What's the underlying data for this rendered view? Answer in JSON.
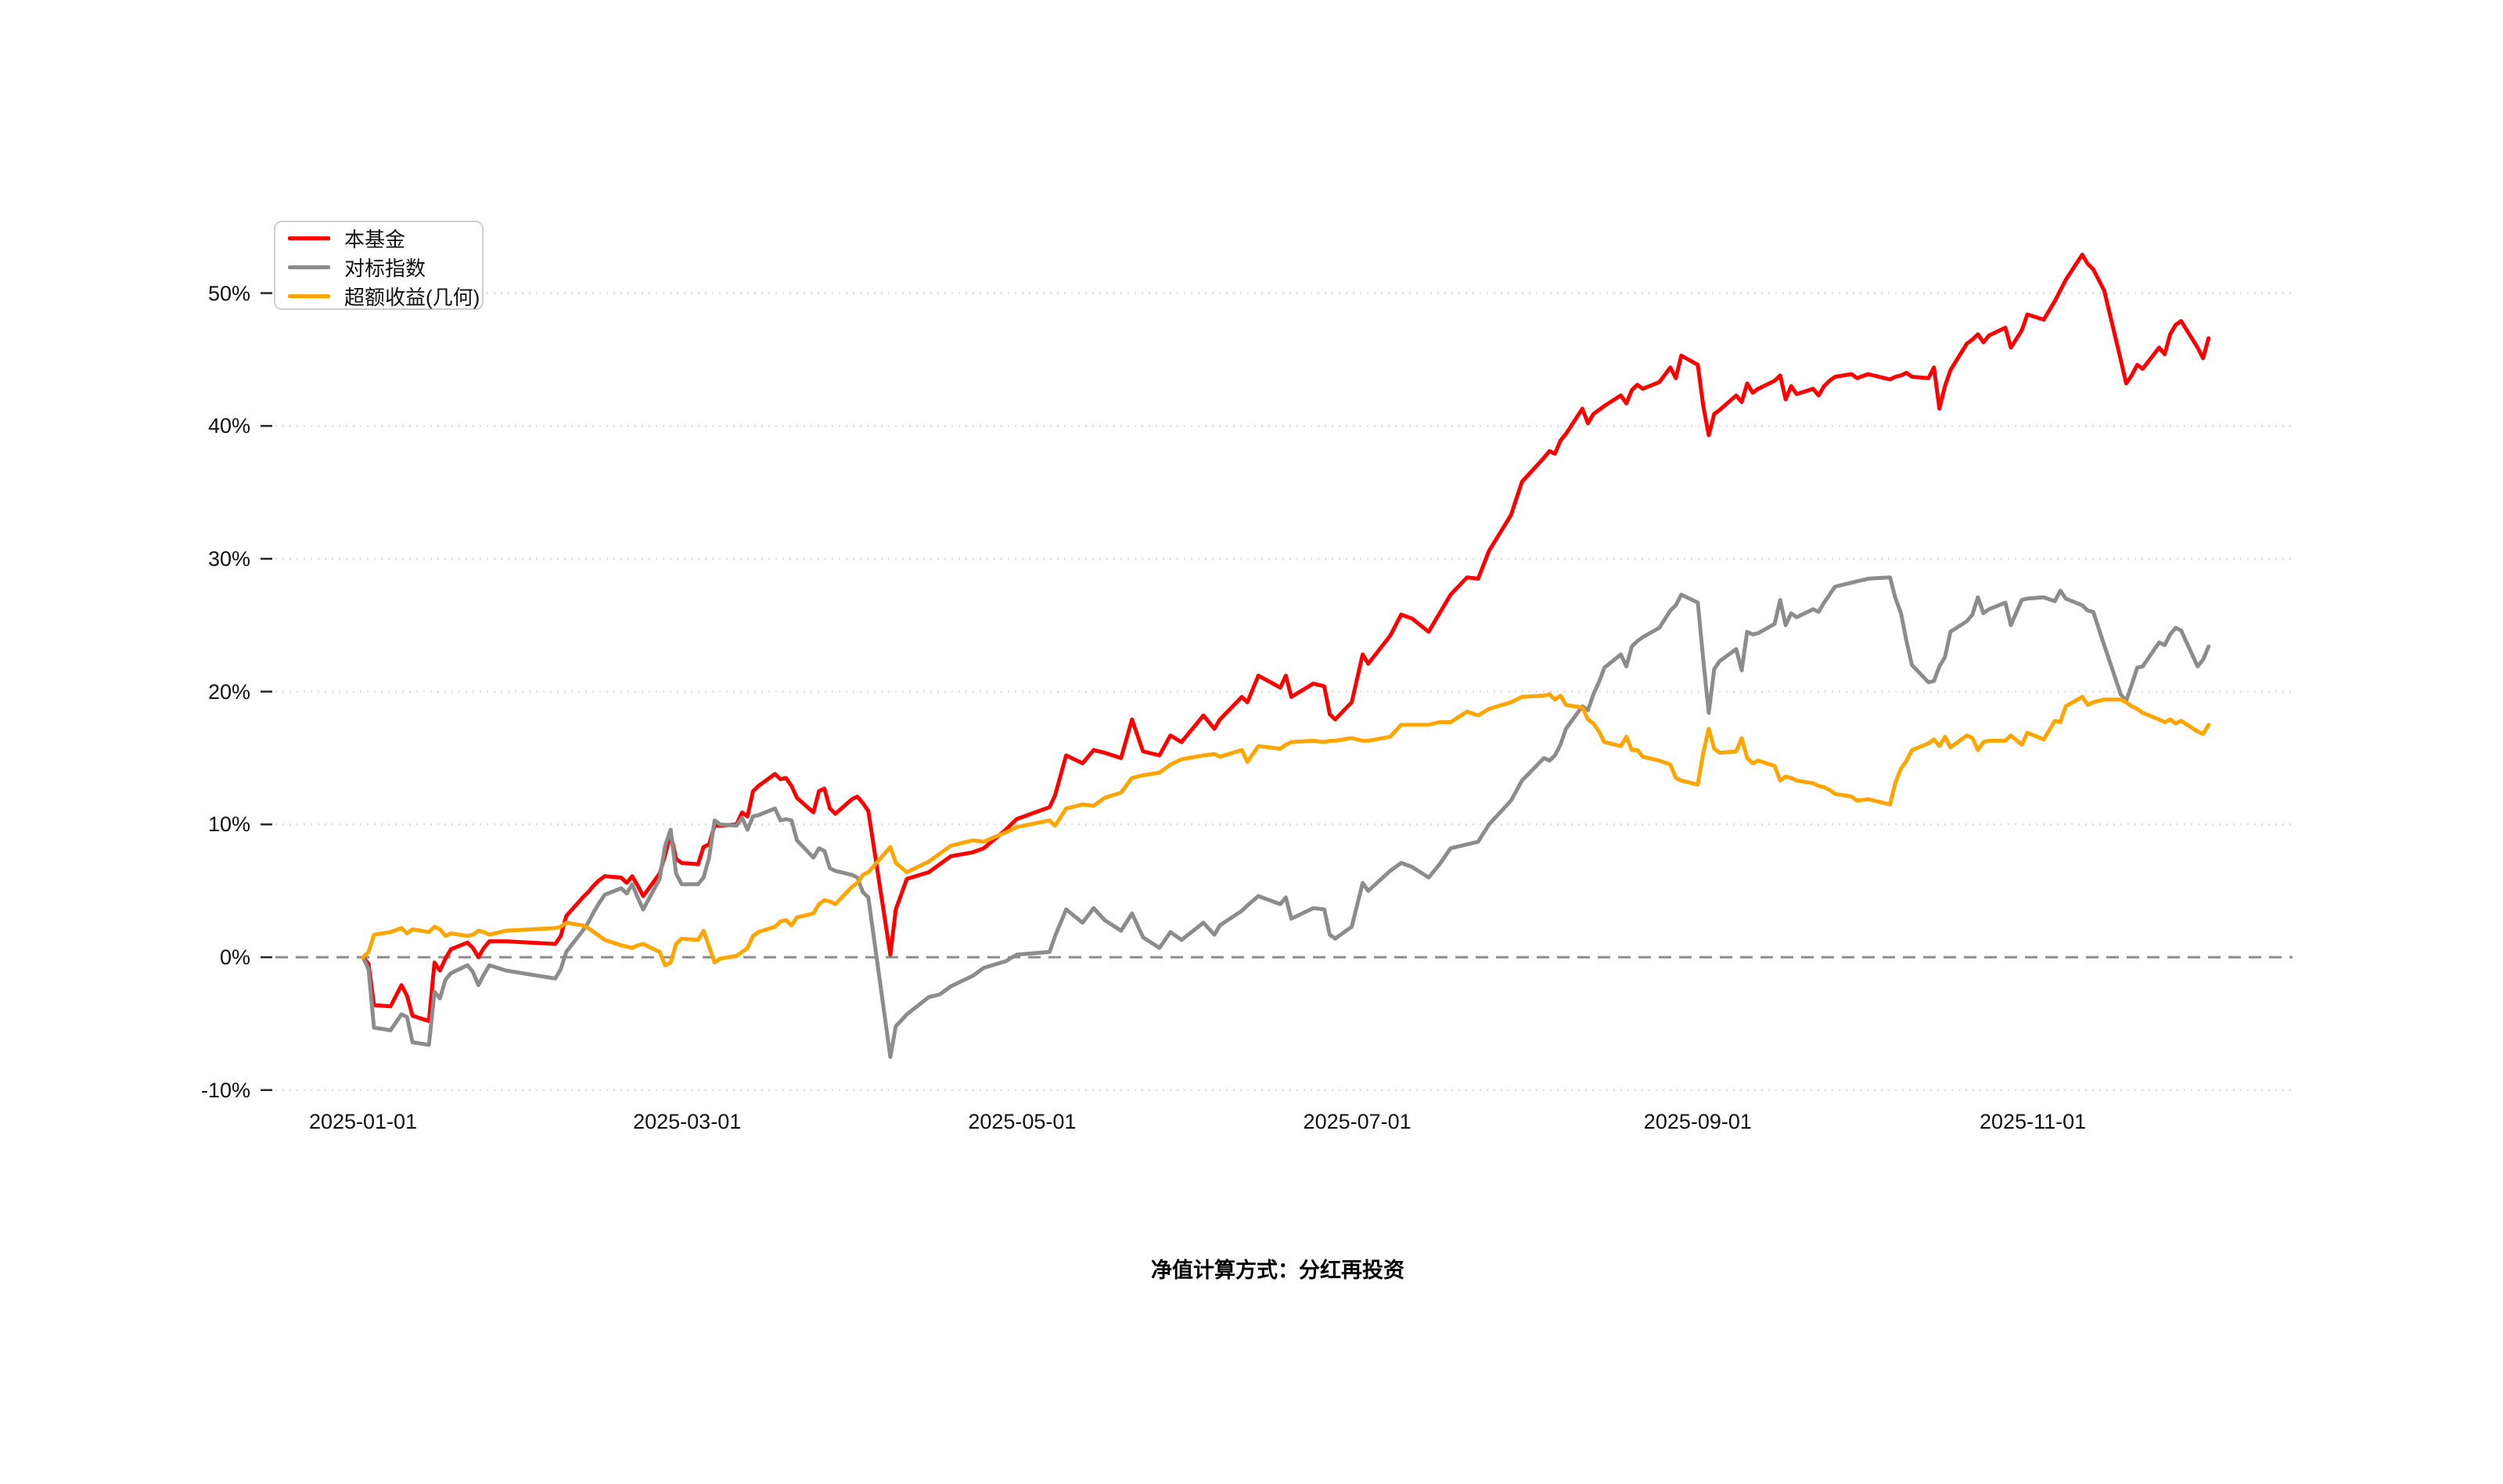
{
  "page": {
    "background": "#ffffff"
  },
  "legend": {
    "items": [
      {
        "label": "本基金",
        "color": "#ff0000"
      },
      {
        "label": "对标指数",
        "color": "#8c8c8c"
      },
      {
        "label": "超额收益(几何)",
        "color": "#ffa500"
      }
    ]
  },
  "footer": {
    "note": "净值计算方式：分红再投资"
  },
  "chart_data": {
    "type": "line",
    "title": "",
    "xlabel": "",
    "ylabel": "",
    "grid": "horizontal-dotted",
    "legend_position": "upper-left",
    "zero_line": "dashed",
    "ylim": [
      -13,
      56
    ],
    "x_axis": {
      "tick_labels": [
        "2025-01-01",
        "2025-03-01",
        "2025-05-01",
        "2025-07-01",
        "2025-09-01",
        "2025-11-01"
      ],
      "tick_day_offsets": [
        0,
        59,
        120,
        181,
        243,
        304
      ]
    },
    "y_axis": {
      "tick_labels": [
        "50%",
        "40%",
        "30%",
        "20%",
        "10%",
        "0%",
        "-10%"
      ],
      "tick_values": [
        50,
        40,
        30,
        20,
        10,
        0,
        -10
      ],
      "unit": "percent"
    },
    "series": [
      {
        "name": "本基金",
        "color": "#ff0000",
        "width": 5
      },
      {
        "name": "对标指数",
        "color": "#8c8c8c",
        "width": 5
      },
      {
        "name": "超额收益(几何)",
        "color": "#ffa500",
        "width": 5
      }
    ],
    "rows_format": [
      "date(2025-MM-DD)",
      "本基金%",
      "对标指数%",
      "超额收益(几何)%"
    ],
    "rows": [
      [
        "01-01",
        0.0,
        0.0,
        0.0
      ],
      [
        "01-02",
        -0.5,
        -0.9,
        0.4
      ],
      [
        "01-03",
        -3.6,
        -5.3,
        1.7
      ],
      [
        "01-06",
        -3.7,
        -5.5,
        1.9
      ],
      [
        "01-08",
        -2.1,
        -4.3,
        2.2
      ],
      [
        "01-09",
        -2.9,
        -4.5,
        1.8
      ],
      [
        "01-10",
        -4.4,
        -6.4,
        2.1
      ],
      [
        "01-13",
        -4.8,
        -6.6,
        1.9
      ],
      [
        "01-14",
        -0.4,
        -2.6,
        2.3
      ],
      [
        "01-15",
        -1.0,
        -3.1,
        2.1
      ],
      [
        "01-16",
        -0.1,
        -1.7,
        1.6
      ],
      [
        "01-17",
        0.6,
        -1.2,
        1.8
      ],
      [
        "01-20",
        1.1,
        -0.6,
        1.6
      ],
      [
        "01-21",
        0.7,
        -1.1,
        1.7
      ],
      [
        "01-22",
        0.0,
        -2.1,
        2.0
      ],
      [
        "01-23",
        0.7,
        -1.3,
        1.9
      ],
      [
        "01-24",
        1.2,
        -0.6,
        1.7
      ],
      [
        "01-27",
        1.2,
        -1.0,
        2.0
      ],
      [
        "02-05",
        1.0,
        -1.6,
        2.2
      ],
      [
        "02-06",
        1.6,
        -0.9,
        2.3
      ],
      [
        "02-07",
        3.1,
        0.4,
        2.6
      ],
      [
        "02-10",
        4.5,
        2.0,
        2.4
      ],
      [
        "02-11",
        4.9,
        2.6,
        2.2
      ],
      [
        "02-12",
        5.4,
        3.4,
        1.9
      ],
      [
        "02-13",
        5.8,
        4.1,
        1.6
      ],
      [
        "02-14",
        6.1,
        4.7,
        1.3
      ],
      [
        "02-17",
        6.0,
        5.2,
        0.9
      ],
      [
        "02-18",
        5.6,
        4.8,
        0.8
      ],
      [
        "02-19",
        6.1,
        5.5,
        0.7
      ],
      [
        "02-20",
        5.4,
        4.5,
        0.9
      ],
      [
        "02-21",
        4.6,
        3.6,
        1.0
      ],
      [
        "02-24",
        6.3,
        5.9,
        0.4
      ],
      [
        "02-25",
        7.7,
        8.4,
        -0.6
      ],
      [
        "02-26",
        9.3,
        9.6,
        -0.4
      ],
      [
        "02-27",
        7.4,
        6.3,
        1.0
      ],
      [
        "02-28",
        7.1,
        5.5,
        1.4
      ],
      [
        "03-03",
        7.0,
        5.5,
        1.3
      ],
      [
        "03-04",
        8.3,
        6.0,
        2.0
      ],
      [
        "03-05",
        8.5,
        7.5,
        0.8
      ],
      [
        "03-06",
        9.9,
        10.3,
        -0.4
      ],
      [
        "03-07",
        9.9,
        10.0,
        -0.1
      ],
      [
        "03-10",
        10.0,
        9.9,
        0.1
      ],
      [
        "03-11",
        10.9,
        10.5,
        0.4
      ],
      [
        "03-12",
        10.6,
        9.6,
        0.7
      ],
      [
        "03-13",
        12.5,
        10.6,
        1.6
      ],
      [
        "03-14",
        12.9,
        10.7,
        1.9
      ],
      [
        "03-17",
        13.8,
        11.2,
        2.3
      ],
      [
        "03-18",
        13.4,
        10.3,
        2.7
      ],
      [
        "03-19",
        13.5,
        10.4,
        2.8
      ],
      [
        "03-20",
        12.9,
        10.3,
        2.4
      ],
      [
        "03-21",
        12.0,
        8.8,
        3.0
      ],
      [
        "03-24",
        10.9,
        7.5,
        3.3
      ],
      [
        "03-25",
        12.5,
        8.2,
        4.0
      ],
      [
        "03-26",
        12.7,
        8.0,
        4.3
      ],
      [
        "03-27",
        11.2,
        6.7,
        4.2
      ],
      [
        "03-28",
        10.8,
        6.5,
        4.0
      ],
      [
        "03-31",
        11.9,
        6.2,
        5.3
      ],
      [
        "04-01",
        12.1,
        6.0,
        5.6
      ],
      [
        "04-02",
        11.6,
        4.9,
        6.2
      ],
      [
        "04-03",
        11.0,
        4.5,
        6.4
      ],
      [
        "04-07",
        0.2,
        -7.5,
        8.3
      ],
      [
        "04-08",
        3.6,
        -5.2,
        7.1
      ],
      [
        "04-10",
        5.9,
        -4.3,
        6.4
      ],
      [
        "04-14",
        6.4,
        -3.0,
        7.2
      ],
      [
        "04-16",
        7.0,
        -2.8,
        7.8
      ],
      [
        "04-18",
        7.6,
        -2.2,
        8.4
      ],
      [
        "04-22",
        7.9,
        -1.4,
        8.8
      ],
      [
        "04-24",
        8.2,
        -0.8,
        8.7
      ],
      [
        "04-28",
        9.6,
        -0.3,
        9.4
      ],
      [
        "04-30",
        10.4,
        0.2,
        9.8
      ],
      [
        "05-06",
        11.3,
        0.4,
        10.3
      ],
      [
        "05-07",
        12.2,
        1.6,
        9.9
      ],
      [
        "05-09",
        15.2,
        3.6,
        11.2
      ],
      [
        "05-12",
        14.6,
        2.6,
        11.5
      ],
      [
        "05-14",
        15.6,
        3.7,
        11.4
      ],
      [
        "05-16",
        15.4,
        2.8,
        12.0
      ],
      [
        "05-19",
        15.0,
        2.0,
        12.4
      ],
      [
        "05-21",
        17.9,
        3.3,
        13.5
      ],
      [
        "05-23",
        15.5,
        1.5,
        13.7
      ],
      [
        "05-26",
        15.2,
        0.7,
        13.9
      ],
      [
        "05-28",
        16.7,
        1.9,
        14.5
      ],
      [
        "05-30",
        16.2,
        1.3,
        14.9
      ],
      [
        "06-03",
        18.2,
        2.6,
        15.2
      ],
      [
        "06-05",
        17.2,
        1.7,
        15.3
      ],
      [
        "06-06",
        17.9,
        2.4,
        15.1
      ],
      [
        "06-10",
        19.6,
        3.5,
        15.6
      ],
      [
        "06-11",
        19.2,
        3.9,
        14.7
      ],
      [
        "06-13",
        21.2,
        4.6,
        15.9
      ],
      [
        "06-17",
        20.3,
        4.0,
        15.7
      ],
      [
        "06-18",
        21.2,
        4.5,
        16.0
      ],
      [
        "06-19",
        19.6,
        2.9,
        16.2
      ],
      [
        "06-23",
        20.6,
        3.7,
        16.3
      ],
      [
        "06-25",
        20.4,
        3.6,
        16.2
      ],
      [
        "06-26",
        18.3,
        1.7,
        16.3
      ],
      [
        "06-27",
        17.9,
        1.4,
        16.3
      ],
      [
        "06-30",
        19.2,
        2.3,
        16.5
      ],
      [
        "07-02",
        22.8,
        5.6,
        16.3
      ],
      [
        "07-03",
        22.1,
        5.0,
        16.3
      ],
      [
        "07-07",
        24.2,
        6.5,
        16.6
      ],
      [
        "07-09",
        25.8,
        7.1,
        17.5
      ],
      [
        "07-11",
        25.5,
        6.8,
        17.5
      ],
      [
        "07-14",
        24.5,
        6.0,
        17.5
      ],
      [
        "07-16",
        25.9,
        7.0,
        17.7
      ],
      [
        "07-18",
        27.3,
        8.2,
        17.7
      ],
      [
        "07-21",
        28.6,
        8.5,
        18.5
      ],
      [
        "07-23",
        28.5,
        8.7,
        18.2
      ],
      [
        "07-25",
        30.6,
        10.0,
        18.7
      ],
      [
        "07-29",
        33.3,
        11.8,
        19.2
      ],
      [
        "07-31",
        35.8,
        13.3,
        19.6
      ],
      [
        "08-04",
        37.6,
        15.0,
        19.7
      ],
      [
        "08-05",
        38.1,
        14.8,
        19.8
      ],
      [
        "08-06",
        37.9,
        15.2,
        19.4
      ],
      [
        "08-07",
        38.9,
        16.0,
        19.7
      ],
      [
        "08-08",
        39.4,
        17.2,
        19.0
      ],
      [
        "08-11",
        41.3,
        18.9,
        18.8
      ],
      [
        "08-12",
        40.2,
        18.6,
        17.9
      ],
      [
        "08-13",
        40.9,
        19.8,
        17.6
      ],
      [
        "08-14",
        41.2,
        20.7,
        17.0
      ],
      [
        "08-15",
        41.5,
        21.8,
        16.2
      ],
      [
        "08-18",
        42.3,
        22.8,
        15.9
      ],
      [
        "08-19",
        41.7,
        21.9,
        16.6
      ],
      [
        "08-20",
        42.7,
        23.4,
        15.6
      ],
      [
        "08-21",
        43.1,
        23.8,
        15.6
      ],
      [
        "08-22",
        42.8,
        24.1,
        15.1
      ],
      [
        "08-25",
        43.3,
        24.8,
        14.8
      ],
      [
        "08-27",
        44.4,
        26.1,
        14.5
      ],
      [
        "08-28",
        43.6,
        26.5,
        13.5
      ],
      [
        "08-29",
        45.3,
        27.3,
        13.3
      ],
      [
        "09-01",
        44.6,
        26.7,
        13.0
      ],
      [
        "09-02",
        41.5,
        22.4,
        15.4
      ],
      [
        "09-03",
        39.3,
        18.4,
        17.2
      ],
      [
        "09-04",
        40.9,
        21.7,
        15.7
      ],
      [
        "09-05",
        41.2,
        22.3,
        15.4
      ],
      [
        "09-08",
        42.3,
        23.2,
        15.5
      ],
      [
        "09-09",
        41.8,
        21.6,
        16.5
      ],
      [
        "09-10",
        43.2,
        24.5,
        15.0
      ],
      [
        "09-11",
        42.5,
        24.3,
        14.6
      ],
      [
        "09-12",
        42.8,
        24.4,
        14.8
      ],
      [
        "09-15",
        43.4,
        25.1,
        14.4
      ],
      [
        "09-16",
        43.8,
        26.9,
        13.3
      ],
      [
        "09-17",
        42.0,
        25.0,
        13.6
      ],
      [
        "09-18",
        43.0,
        25.9,
        13.5
      ],
      [
        "09-19",
        42.4,
        25.6,
        13.3
      ],
      [
        "09-22",
        42.8,
        26.2,
        13.1
      ],
      [
        "09-23",
        42.3,
        26.0,
        12.9
      ],
      [
        "09-24",
        43.0,
        26.7,
        12.8
      ],
      [
        "09-25",
        43.4,
        27.3,
        12.6
      ],
      [
        "09-26",
        43.7,
        27.9,
        12.3
      ],
      [
        "09-29",
        43.9,
        28.2,
        12.1
      ],
      [
        "09-30",
        43.6,
        28.3,
        11.8
      ],
      [
        "10-02",
        43.9,
        28.5,
        11.9
      ],
      [
        "10-06",
        43.5,
        28.6,
        11.5
      ],
      [
        "10-07",
        43.7,
        27.0,
        13.2
      ],
      [
        "10-08",
        43.8,
        25.9,
        14.2
      ],
      [
        "10-09",
        44.0,
        23.8,
        14.8
      ],
      [
        "10-10",
        43.7,
        22.0,
        15.6
      ],
      [
        "10-13",
        43.6,
        20.7,
        16.1
      ],
      [
        "10-14",
        44.4,
        20.8,
        16.4
      ],
      [
        "10-15",
        41.3,
        21.9,
        15.9
      ],
      [
        "10-16",
        43.0,
        22.6,
        16.6
      ],
      [
        "10-17",
        44.2,
        24.5,
        15.8
      ],
      [
        "10-20",
        46.2,
        25.3,
        16.7
      ],
      [
        "10-21",
        46.5,
        25.8,
        16.5
      ],
      [
        "10-22",
        46.9,
        27.1,
        15.6
      ],
      [
        "10-23",
        46.3,
        25.9,
        16.2
      ],
      [
        "10-24",
        46.8,
        26.2,
        16.3
      ],
      [
        "10-27",
        47.4,
        26.7,
        16.3
      ],
      [
        "10-28",
        45.9,
        25.0,
        16.7
      ],
      [
        "10-30",
        47.2,
        26.9,
        16.0
      ],
      [
        "10-31",
        48.4,
        27.0,
        16.9
      ],
      [
        "11-03",
        48.0,
        27.1,
        16.4
      ],
      [
        "11-05",
        49.4,
        26.8,
        17.8
      ],
      [
        "11-06",
        50.2,
        27.6,
        17.7
      ],
      [
        "11-07",
        51.0,
        27.0,
        18.9
      ],
      [
        "11-10",
        52.9,
        26.5,
        19.6
      ],
      [
        "11-11",
        52.2,
        26.1,
        19.0
      ],
      [
        "11-12",
        51.8,
        26.0,
        19.2
      ],
      [
        "11-14",
        50.2,
        23.5,
        19.4
      ],
      [
        "11-17",
        45.0,
        19.8,
        19.4
      ],
      [
        "11-18",
        43.2,
        19.3,
        19.2
      ],
      [
        "11-19",
        43.8,
        20.5,
        18.9
      ],
      [
        "11-20",
        44.6,
        21.8,
        18.7
      ],
      [
        "11-21",
        44.3,
        21.9,
        18.4
      ],
      [
        "11-24",
        45.9,
        23.7,
        17.9
      ],
      [
        "11-25",
        45.4,
        23.5,
        17.7
      ],
      [
        "11-26",
        46.9,
        24.3,
        17.9
      ],
      [
        "11-27",
        47.6,
        24.8,
        17.6
      ],
      [
        "11-28",
        47.9,
        24.6,
        17.8
      ],
      [
        "12-01",
        45.9,
        21.9,
        17.0
      ],
      [
        "12-02",
        45.1,
        22.4,
        16.8
      ],
      [
        "12-03",
        46.6,
        23.4,
        17.5
      ]
    ],
    "footnote": "净值计算方式：分红再投资"
  }
}
